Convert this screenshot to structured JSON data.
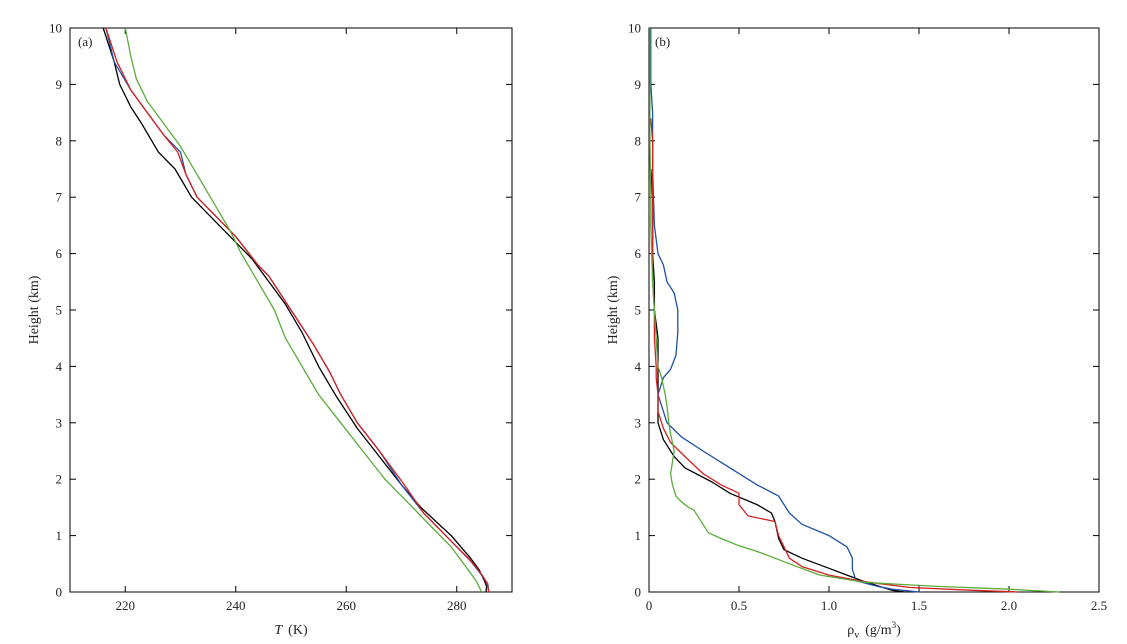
{
  "chart_data": [
    {
      "type": "line",
      "panel_label": "(a)",
      "xlabel_symbol": "T",
      "xlabel_unit": "(K)",
      "ylabel": "Height (km)",
      "xlim": [
        210,
        290
      ],
      "ylim": [
        0,
        10
      ],
      "xticks": [
        "220",
        "240",
        "260",
        "280"
      ],
      "xtick_values": [
        220,
        240,
        260,
        280
      ],
      "yticks": [
        "0",
        "1",
        "2",
        "3",
        "4",
        "5",
        "6",
        "7",
        "8",
        "9",
        "10"
      ],
      "series": [
        {
          "name": "black",
          "color": "#000000",
          "points": [
            [
              285.3,
              0
            ],
            [
              285.4,
              0.1
            ],
            [
              285.0,
              0.2
            ],
            [
              284,
              0.4
            ],
            [
              282.5,
              0.6
            ],
            [
              279,
              1.0
            ],
            [
              273.5,
              1.5
            ],
            [
              270,
              1.9
            ],
            [
              266,
              2.4
            ],
            [
              262,
              2.9
            ],
            [
              258,
              3.5
            ],
            [
              255,
              4.0
            ],
            [
              252,
              4.6
            ],
            [
              249,
              5.1
            ],
            [
              246,
              5.5
            ],
            [
              243,
              5.9
            ],
            [
              240,
              6.2
            ],
            [
              236,
              6.6
            ],
            [
              232,
              7.0
            ],
            [
              229,
              7.5
            ],
            [
              226,
              7.8
            ],
            [
              223,
              8.3
            ],
            [
              221,
              8.6
            ],
            [
              219,
              9.0
            ],
            [
              218,
              9.4
            ],
            [
              216,
              10.0
            ]
          ]
        },
        {
          "name": "blue",
          "color": "#1f4fa8",
          "points": [
            [
              285.8,
              0
            ],
            [
              285.6,
              0.15
            ],
            [
              284.5,
              0.3
            ],
            [
              282.5,
              0.55
            ],
            [
              279,
              0.9
            ],
            [
              274,
              1.4
            ],
            [
              270,
              1.9
            ],
            [
              266,
              2.5
            ],
            [
              262,
              3.0
            ],
            [
              259,
              3.5
            ],
            [
              257,
              3.9
            ],
            [
              254,
              4.4
            ],
            [
              250,
              5.0
            ],
            [
              246,
              5.6
            ],
            [
              244,
              5.8
            ],
            [
              240,
              6.3
            ],
            [
              236,
              6.7
            ],
            [
              233,
              7.0
            ],
            [
              231,
              7.4
            ],
            [
              230,
              7.8
            ],
            [
              227,
              8.1
            ],
            [
              224,
              8.5
            ],
            [
              221,
              8.9
            ],
            [
              218,
              9.4
            ],
            [
              216.5,
              10.0
            ]
          ]
        },
        {
          "name": "red",
          "color": "#d42020",
          "points": [
            [
              285.8,
              0
            ],
            [
              285.5,
              0.15
            ],
            [
              284.6,
              0.3
            ],
            [
              282.6,
              0.55
            ],
            [
              279,
              0.9
            ],
            [
              274,
              1.4
            ],
            [
              270.5,
              1.9
            ],
            [
              266,
              2.5
            ],
            [
              262,
              3.0
            ],
            [
              259,
              3.5
            ],
            [
              257,
              3.9
            ],
            [
              254,
              4.4
            ],
            [
              250,
              5.0
            ],
            [
              246,
              5.6
            ],
            [
              244,
              5.8
            ],
            [
              240,
              6.3
            ],
            [
              236,
              6.7
            ],
            [
              233,
              7.0
            ],
            [
              231,
              7.4
            ],
            [
              229.5,
              7.8
            ],
            [
              227,
              8.1
            ],
            [
              224,
              8.5
            ],
            [
              221,
              8.9
            ],
            [
              218.5,
              9.4
            ],
            [
              216.5,
              10.0
            ]
          ]
        },
        {
          "name": "green",
          "color": "#5aac3a",
          "points": [
            [
              284.5,
              0
            ],
            [
              283.5,
              0.2
            ],
            [
              282,
              0.4
            ],
            [
              279,
              0.8
            ],
            [
              276,
              1.1
            ],
            [
              272,
              1.5
            ],
            [
              267,
              2.0
            ],
            [
              263,
              2.5
            ],
            [
              259,
              3.0
            ],
            [
              255,
              3.5
            ],
            [
              252,
              4.0
            ],
            [
              249,
              4.5
            ],
            [
              247,
              5.0
            ],
            [
              244,
              5.5
            ],
            [
              241,
              6.0
            ],
            [
              239,
              6.4
            ],
            [
              236,
              6.9
            ],
            [
              233,
              7.4
            ],
            [
              230,
              7.9
            ],
            [
              227,
              8.3
            ],
            [
              224,
              8.7
            ],
            [
              222,
              9.1
            ],
            [
              221,
              9.5
            ],
            [
              220,
              10.0
            ]
          ]
        }
      ]
    },
    {
      "type": "line",
      "panel_label": "(b)",
      "xlabel_symbol": "ρ",
      "xlabel_sub": "v",
      "xlabel_unit": "(g/m",
      "xlabel_sup": "3",
      "xlabel_close": ")",
      "ylabel": "Height (km)",
      "xlim": [
        0,
        2.5
      ],
      "ylim": [
        0,
        10
      ],
      "xticks": [
        "0",
        "0.5",
        "1.0",
        "1.5",
        "2.0",
        "2.5"
      ],
      "xtick_values": [
        0,
        0.5,
        1.0,
        1.5,
        2.0,
        2.5
      ],
      "yticks": [
        "0",
        "1",
        "2",
        "3",
        "4",
        "5",
        "6",
        "7",
        "8",
        "9",
        "10"
      ],
      "series": [
        {
          "name": "black",
          "color": "#000000",
          "points": [
            [
              1.42,
              0
            ],
            [
              1.35,
              0.03
            ],
            [
              1.3,
              0.08
            ],
            [
              1.2,
              0.18
            ],
            [
              1.1,
              0.3
            ],
            [
              1.0,
              0.42
            ],
            [
              0.85,
              0.6
            ],
            [
              0.75,
              0.75
            ],
            [
              0.72,
              0.95
            ],
            [
              0.7,
              1.25
            ],
            [
              0.68,
              1.4
            ],
            [
              0.6,
              1.55
            ],
            [
              0.45,
              1.75
            ],
            [
              0.35,
              1.95
            ],
            [
              0.2,
              2.2
            ],
            [
              0.14,
              2.4
            ],
            [
              0.08,
              2.7
            ],
            [
              0.05,
              3.0
            ],
            [
              0.05,
              3.5
            ],
            [
              0.05,
              4.0
            ],
            [
              0.05,
              4.5
            ],
            [
              0.03,
              5.0
            ],
            [
              0.03,
              5.5
            ],
            [
              0.02,
              6.0
            ],
            [
              0.02,
              6.5
            ],
            [
              0.02,
              7.0
            ],
            [
              0.01,
              7.5
            ]
          ]
        },
        {
          "name": "blue",
          "color": "#1f4fa8",
          "points": [
            [
              1.5,
              0
            ],
            [
              1.35,
              0.05
            ],
            [
              1.27,
              0.1
            ],
            [
              1.15,
              0.2
            ],
            [
              1.13,
              0.4
            ],
            [
              1.13,
              0.6
            ],
            [
              1.1,
              0.8
            ],
            [
              1.0,
              1.0
            ],
            [
              0.85,
              1.2
            ],
            [
              0.78,
              1.4
            ],
            [
              0.72,
              1.7
            ],
            [
              0.6,
              1.9
            ],
            [
              0.45,
              2.2
            ],
            [
              0.3,
              2.5
            ],
            [
              0.18,
              2.75
            ],
            [
              0.1,
              3.0
            ],
            [
              0.05,
              3.5
            ],
            [
              0.08,
              3.8
            ],
            [
              0.12,
              3.95
            ],
            [
              0.15,
              4.2
            ],
            [
              0.16,
              4.6
            ],
            [
              0.16,
              5.0
            ],
            [
              0.14,
              5.3
            ],
            [
              0.1,
              5.5
            ],
            [
              0.08,
              5.8
            ],
            [
              0.05,
              6.0
            ],
            [
              0.03,
              6.5
            ],
            [
              0.02,
              7.5
            ],
            [
              0.02,
              8.5
            ],
            [
              0.01,
              9.0
            ],
            [
              0.01,
              10.0
            ]
          ]
        },
        {
          "name": "red",
          "color": "#d42020",
          "points": [
            [
              2.05,
              0
            ],
            [
              1.8,
              0.03
            ],
            [
              1.45,
              0.08
            ],
            [
              1.2,
              0.18
            ],
            [
              1.0,
              0.3
            ],
            [
              0.85,
              0.45
            ],
            [
              0.78,
              0.6
            ],
            [
              0.75,
              0.8
            ],
            [
              0.72,
              1.0
            ],
            [
              0.7,
              1.25
            ],
            [
              0.55,
              1.35
            ],
            [
              0.5,
              1.55
            ],
            [
              0.5,
              1.75
            ],
            [
              0.4,
              1.9
            ],
            [
              0.3,
              2.1
            ],
            [
              0.2,
              2.4
            ],
            [
              0.12,
              2.65
            ],
            [
              0.08,
              2.9
            ],
            [
              0.05,
              3.2
            ],
            [
              0.05,
              3.5
            ],
            [
              0.04,
              3.8
            ],
            [
              0.04,
              4.0
            ],
            [
              0.03,
              4.5
            ],
            [
              0.03,
              5.0
            ],
            [
              0.02,
              5.5
            ],
            [
              0.02,
              6.0
            ],
            [
              0.02,
              7.0
            ],
            [
              0.02,
              8.0
            ],
            [
              0.01,
              8.4
            ]
          ]
        },
        {
          "name": "green",
          "color": "#5aac3a",
          "points": [
            [
              2.28,
              0
            ],
            [
              2.0,
              0.05
            ],
            [
              1.6,
              0.1
            ],
            [
              1.2,
              0.17
            ],
            [
              0.95,
              0.3
            ],
            [
              0.78,
              0.5
            ],
            [
              0.7,
              0.6
            ],
            [
              0.6,
              0.72
            ],
            [
              0.5,
              0.82
            ],
            [
              0.4,
              0.95
            ],
            [
              0.33,
              1.05
            ],
            [
              0.28,
              1.3
            ],
            [
              0.25,
              1.45
            ],
            [
              0.22,
              1.5
            ],
            [
              0.18,
              1.6
            ],
            [
              0.15,
              1.7
            ],
            [
              0.13,
              1.9
            ],
            [
              0.12,
              2.1
            ],
            [
              0.13,
              2.3
            ],
            [
              0.14,
              2.5
            ],
            [
              0.12,
              2.8
            ],
            [
              0.11,
              3.0
            ],
            [
              0.1,
              3.3
            ],
            [
              0.09,
              3.5
            ],
            [
              0.07,
              3.8
            ],
            [
              0.05,
              4.0
            ],
            [
              0.04,
              4.5
            ],
            [
              0.03,
              5.0
            ],
            [
              0.02,
              5.5
            ],
            [
              0.015,
              6.0
            ],
            [
              0.01,
              6.5
            ],
            [
              0.01,
              7.0
            ],
            [
              0.005,
              8.0
            ],
            [
              0.005,
              9.0
            ],
            [
              0.005,
              10.0
            ]
          ]
        }
      ]
    }
  ]
}
